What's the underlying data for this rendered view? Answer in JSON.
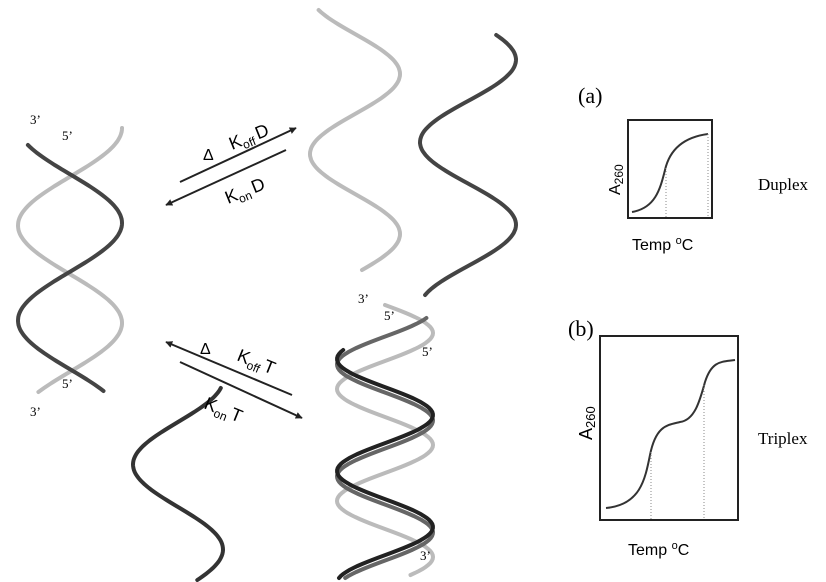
{
  "duplex_helix": {
    "labels": [
      "3’",
      "5’",
      "5’",
      "3’"
    ]
  },
  "reaction_duplex": {
    "delta": "Δ",
    "forward_k": "K",
    "forward_sub": "off",
    "forward_species": "D",
    "reverse_k": "K",
    "reverse_sub": "on",
    "reverse_species": "D"
  },
  "reaction_triplex": {
    "delta": "Δ",
    "forward_k": "K",
    "forward_sub": "off",
    "forward_species": "T",
    "reverse_k": "K",
    "reverse_sub": "on",
    "reverse_species": "T"
  },
  "triplex_helix": {
    "labels": [
      "3’",
      "5’",
      "5’",
      "3’"
    ]
  },
  "panel_a": {
    "label": "(a)",
    "y_axis": "A",
    "y_axis_sub": "260",
    "x_axis": "Temp ",
    "x_axis_sup": "o",
    "x_axis_unit": "C",
    "name": "Duplex"
  },
  "panel_b": {
    "label": "(b)",
    "y_axis": "A",
    "y_axis_sub": "260",
    "x_axis": "Temp ",
    "x_axis_sup": "o",
    "x_axis_unit": "C",
    "name": "Triplex"
  }
}
